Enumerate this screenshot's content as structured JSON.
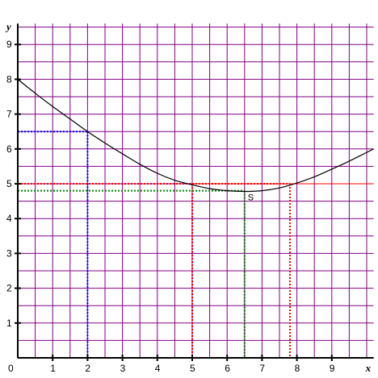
{
  "chart_data": {
    "type": "line",
    "title": "",
    "xlabel": "x",
    "ylabel": "y",
    "xlim": [
      0,
      10.2
    ],
    "ylim": [
      0,
      9.6
    ],
    "x_ticks": [
      0,
      1,
      2,
      3,
      4,
      5,
      6,
      7,
      8,
      9
    ],
    "y_ticks": [
      1,
      2,
      3,
      4,
      5,
      6,
      7,
      8,
      9
    ],
    "x_tick_labels": [
      "0",
      "1",
      "2",
      "3",
      "4",
      "5",
      "6",
      "7",
      "8",
      "9"
    ],
    "y_tick_labels": [
      "1",
      "2",
      "3",
      "4",
      "5",
      "6",
      "7",
      "8",
      "9"
    ],
    "grid": true,
    "grid_step": 0.5,
    "curve": {
      "x": [
        0,
        0.5,
        1,
        1.5,
        2,
        2.5,
        3,
        3.5,
        4,
        4.5,
        5,
        5.5,
        6,
        6.5,
        7,
        7.5,
        8,
        8.5,
        9,
        9.5,
        10,
        10.2
      ],
      "y": [
        8.0,
        7.6,
        7.22,
        6.86,
        6.5,
        6.17,
        5.86,
        5.56,
        5.3,
        5.1,
        4.97,
        4.86,
        4.8,
        4.78,
        4.8,
        4.88,
        5.02,
        5.2,
        5.42,
        5.65,
        5.9,
        6.0
      ]
    },
    "vertex_label": "S",
    "vertex": [
      6.5,
      4.8
    ],
    "guides": [
      {
        "color": "blue",
        "x": 2,
        "y": 6.5
      },
      {
        "color": "red",
        "x": 5,
        "y": 5
      },
      {
        "color": "red",
        "x": 7.8,
        "y": 5
      },
      {
        "color": "green",
        "x": 6.5,
        "y": 4.8
      }
    ],
    "colors": {
      "grid": "#800080",
      "axis": "#000000",
      "curve": "#000000",
      "blue": "#0000ff",
      "red": "#ff0000",
      "green": "#008000"
    }
  }
}
